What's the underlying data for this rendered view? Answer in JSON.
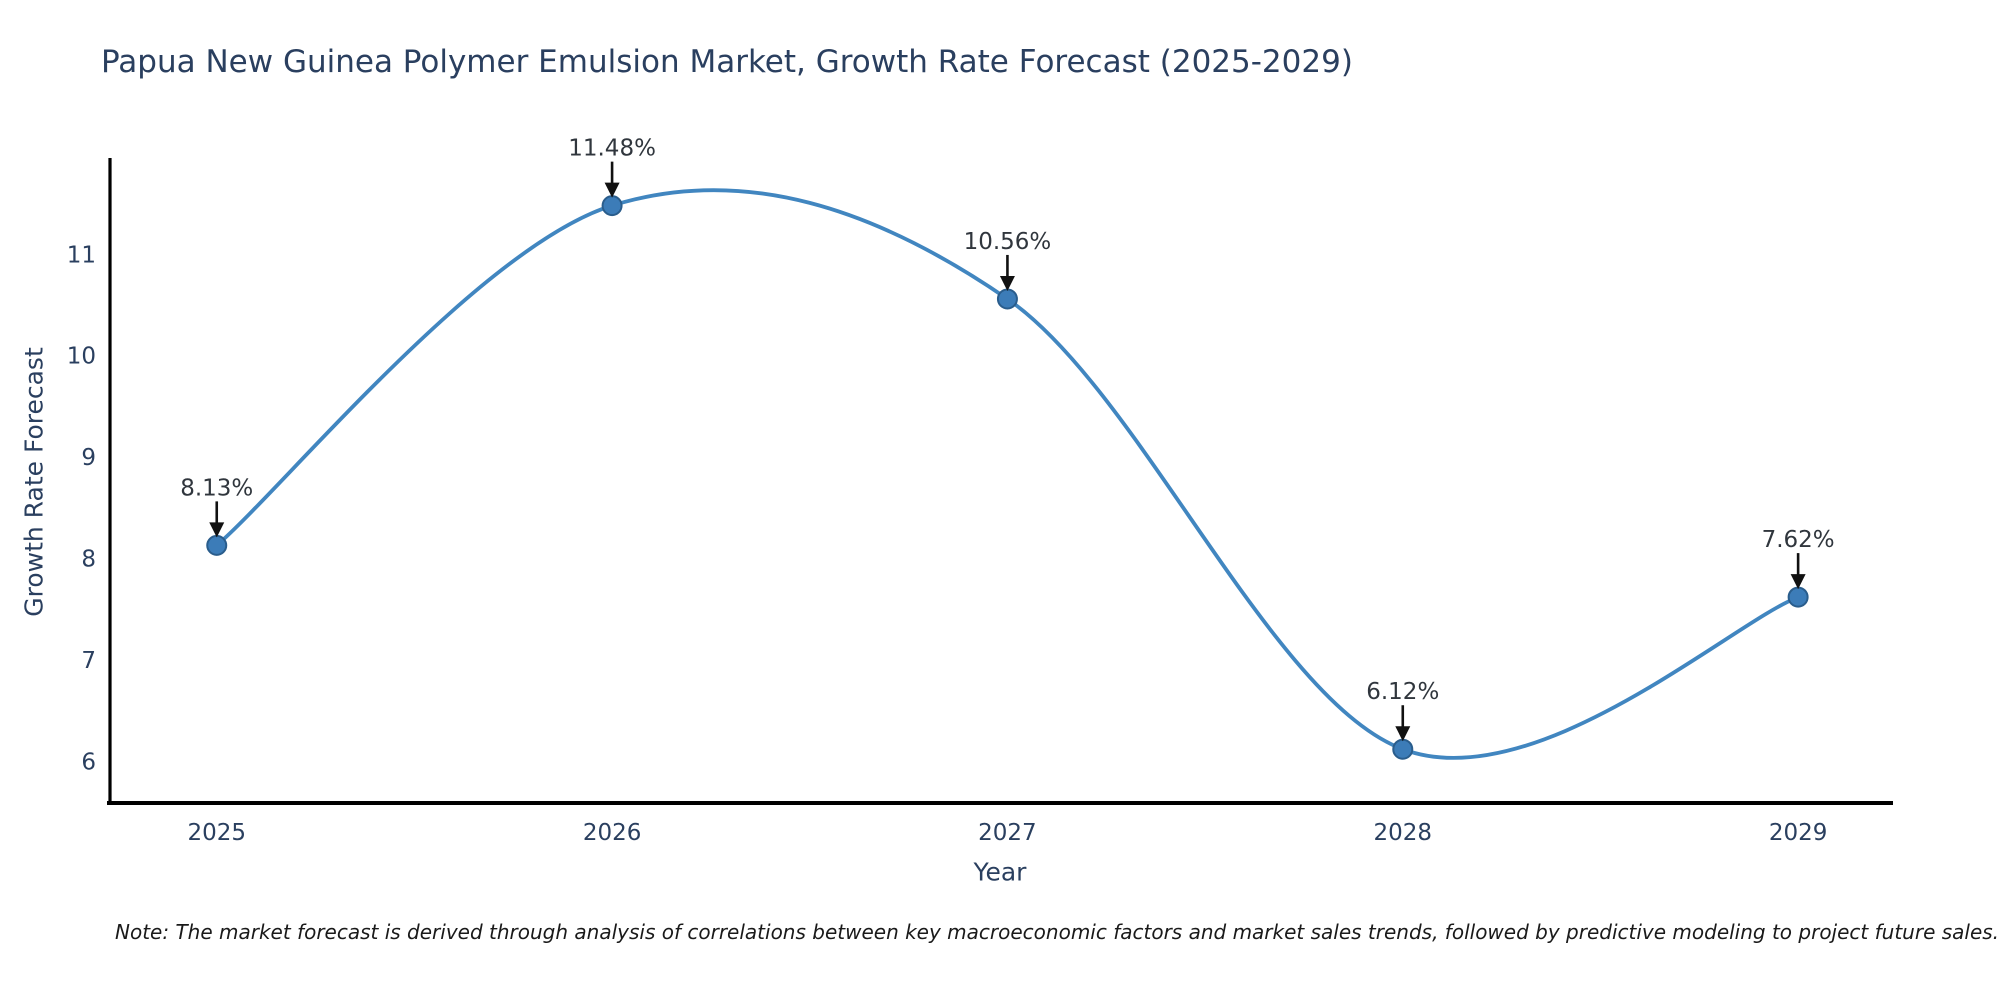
{
  "title": "Papua New Guinea Polymer Emulsion Market, Growth Rate Forecast (2025-2029)",
  "note": "Note: The market forecast is derived through analysis of correlations between key macroeconomic factors and market sales trends, followed by predictive modeling to project future sales.",
  "chart_data": {
    "type": "line",
    "title": "Papua New Guinea Polymer Emulsion Market, Growth Rate Forecast (2025-2029)",
    "xlabel": "Year",
    "ylabel": "Growth Rate Forecast",
    "x": [
      2025,
      2026,
      2027,
      2028,
      2029
    ],
    "values": [
      8.13,
      11.48,
      10.56,
      6.12,
      7.62
    ],
    "series": [
      {
        "name": "Growth Rate Forecast",
        "values": [
          8.13,
          11.48,
          10.56,
          6.12,
          7.62
        ]
      }
    ],
    "point_labels": [
      "8.13%",
      "11.48%",
      "10.56%",
      "6.12%",
      "7.62%"
    ],
    "yticks": [
      6,
      7,
      8,
      9,
      10,
      11
    ],
    "xticks": [
      "2025",
      "2026",
      "2027",
      "2028",
      "2029"
    ],
    "xlim": [
      2024.73,
      2029.24
    ],
    "ylim": [
      5.57,
      11.93
    ],
    "grid": false,
    "legend": "none",
    "line_shape": "spline",
    "colors": {
      "line": "#4186c0",
      "marker_fill": "#3c7cb8",
      "marker_edge": "#2a5d8c",
      "axis_line": "#000000",
      "tick_text": "#2a3f5f",
      "annotation_text": "#30363d",
      "arrow": "#111111"
    }
  }
}
